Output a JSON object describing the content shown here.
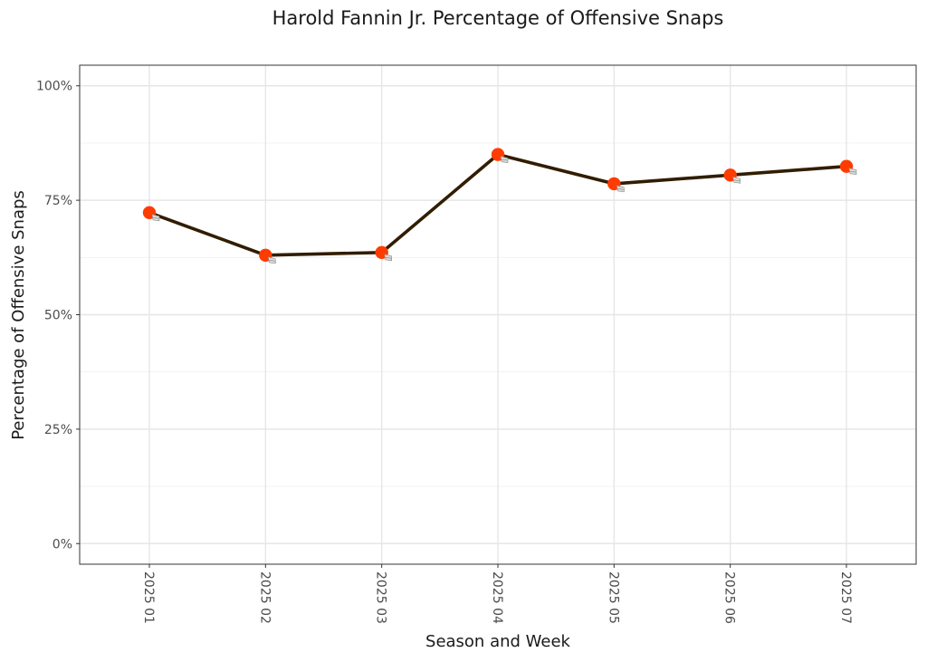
{
  "chart_data": {
    "type": "line",
    "title": "Harold Fannin Jr. Percentage of Offensive Snaps",
    "xlabel": "Season and Week",
    "ylabel": "Percentage of Offensive Snaps",
    "categories": [
      "2025 01",
      "2025 02",
      "2025 03",
      "2025 04",
      "2025 05",
      "2025 06",
      "2025 07"
    ],
    "values": [
      72.3,
      63.0,
      63.6,
      85.0,
      78.6,
      80.5,
      82.4
    ],
    "ylim": [
      -4.5,
      104.5
    ],
    "yticks": [
      0,
      25,
      50,
      75,
      100
    ],
    "ytick_labels": [
      "0%",
      "25%",
      "50%",
      "75%",
      "100%"
    ],
    "grid": true,
    "line_color": "#311d00",
    "marker": "helmet-icon",
    "marker_color": "#ff3c00",
    "marker_facemask_color": "#d9d9d9"
  }
}
